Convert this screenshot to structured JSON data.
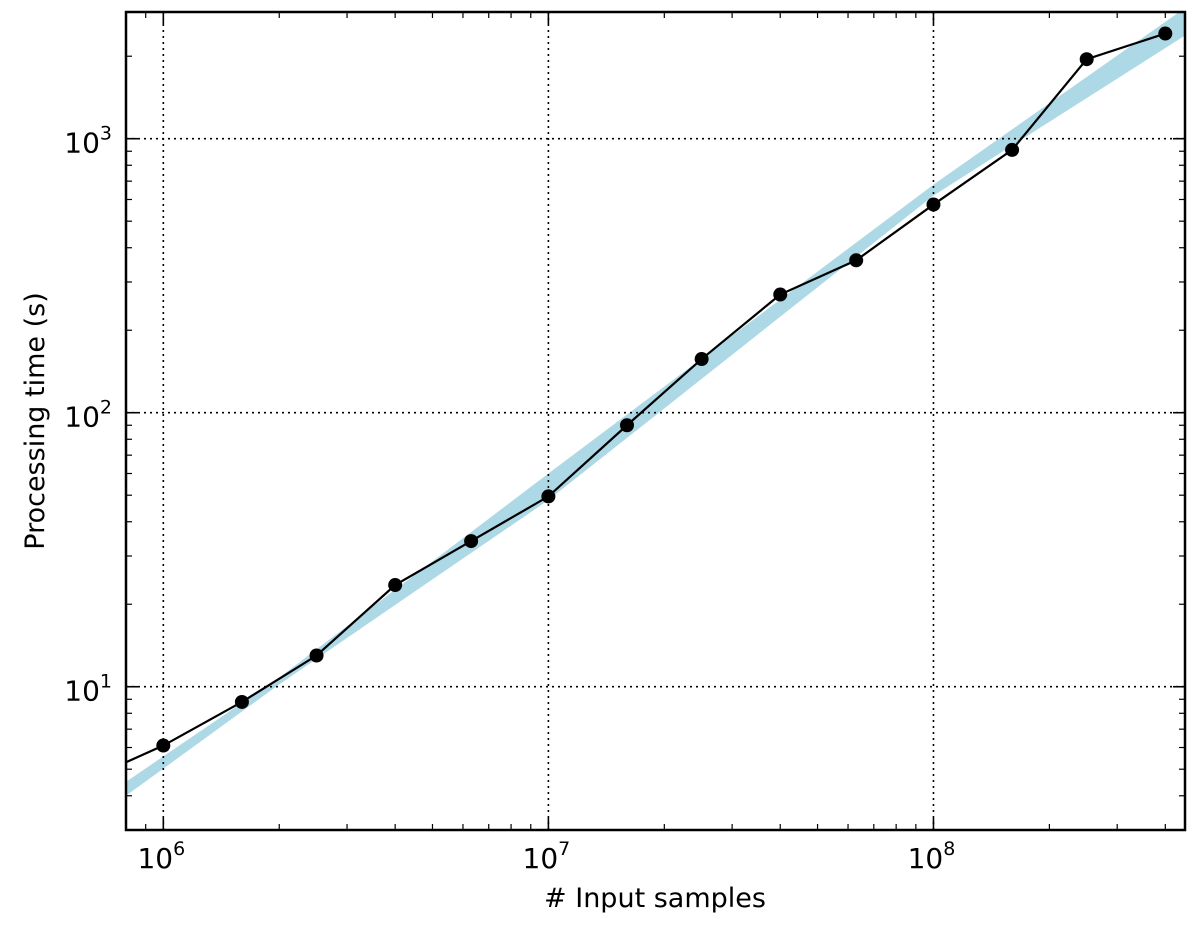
{
  "chart_data": {
    "type": "line",
    "title": "",
    "xlabel": "# Input samples",
    "ylabel": "Processing time (s)",
    "xscale": "log",
    "yscale": "log",
    "xlim": [
      800000,
      450000000
    ],
    "ylim": [
      3,
      2900
    ],
    "grid": true,
    "grid_style": "dotted",
    "x_ticks": [
      {
        "value": 1000000,
        "base": "10",
        "exp": "6"
      },
      {
        "value": 10000000,
        "base": "10",
        "exp": "7"
      },
      {
        "value": 100000000,
        "base": "10",
        "exp": "8"
      }
    ],
    "y_ticks": [
      {
        "value": 10,
        "base": "10",
        "exp": "1"
      },
      {
        "value": 100,
        "base": "10",
        "exp": "2"
      },
      {
        "value": 1000,
        "base": "10",
        "exp": "3"
      }
    ],
    "series": [
      {
        "color": "#000000",
        "marker": "circle",
        "x": [
          1000000,
          1600000,
          2500000,
          4000000,
          6300000,
          10000000,
          16000000,
          25000000,
          40000000,
          63000000,
          100000000,
          160000000,
          250000000,
          400000000
        ],
        "y": [
          6.1,
          8.8,
          13.0,
          23.5,
          34.0,
          49.5,
          90.0,
          157,
          270,
          360,
          575,
          910,
          1950,
          2420
        ],
        "extends_to_x": 800000,
        "extends_to_y": 5.3
      }
    ],
    "band": {
      "color": "#add8e6",
      "x": [
        800000,
        2000000,
        10000000,
        100000000,
        450000000
      ],
      "lower": [
        4.0,
        10.2,
        48,
        620,
        2380
      ],
      "upper": [
        4.5,
        10.8,
        60,
        680,
        3000
      ]
    }
  }
}
